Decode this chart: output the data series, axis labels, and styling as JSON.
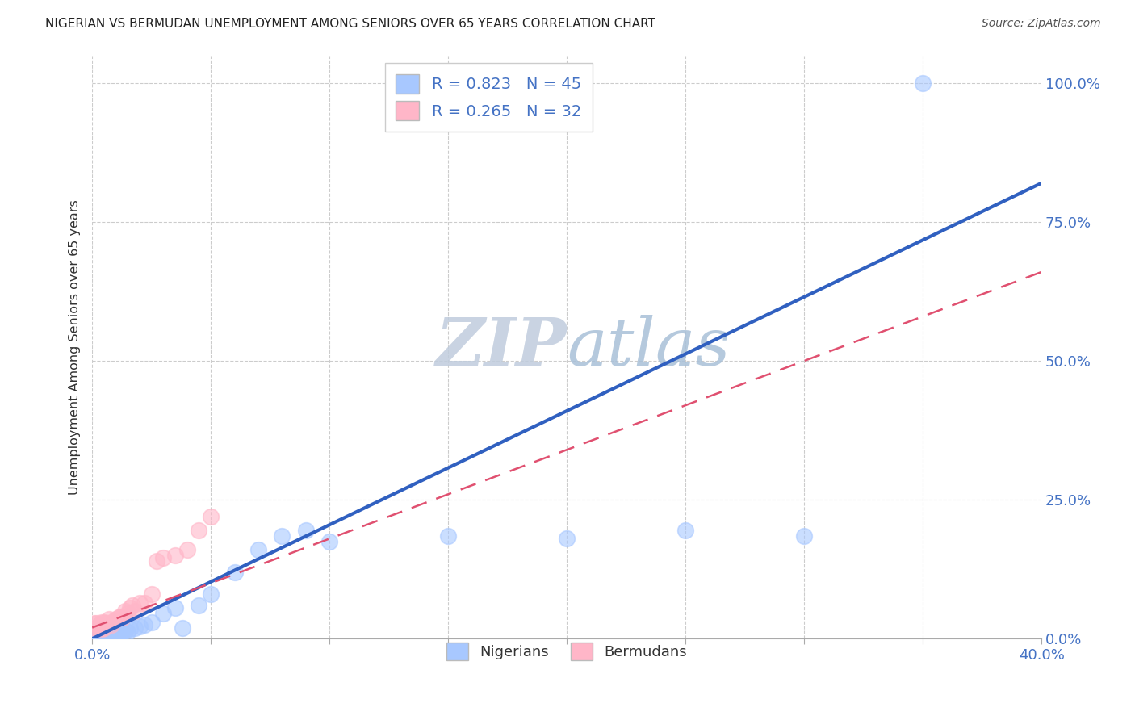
{
  "title": "NIGERIAN VS BERMUDAN UNEMPLOYMENT AMONG SENIORS OVER 65 YEARS CORRELATION CHART",
  "source": "Source: ZipAtlas.com",
  "ylabel": "Unemployment Among Seniors over 65 years",
  "xlim": [
    0.0,
    0.4
  ],
  "ylim": [
    0.0,
    1.05
  ],
  "x_ticks": [
    0.0,
    0.05,
    0.1,
    0.15,
    0.2,
    0.25,
    0.3,
    0.35,
    0.4
  ],
  "y_ticks": [
    0.0,
    0.25,
    0.5,
    0.75,
    1.0
  ],
  "y_tick_labels": [
    "0.0%",
    "25.0%",
    "50.0%",
    "75.0%",
    "100.0%"
  ],
  "nigerian_R": 0.823,
  "nigerian_N": 45,
  "bermudan_R": 0.265,
  "bermudan_N": 32,
  "nigerian_color": "#A8C8FF",
  "bermudan_color": "#FFB6C8",
  "nigerian_line_color": "#3060C0",
  "bermudan_line_color": "#E05070",
  "title_color": "#222222",
  "axis_label_color": "#333333",
  "tick_color": "#4472C4",
  "watermark_color": "#C8D8F0",
  "nigerian_scatter_x": [
    0.001,
    0.002,
    0.002,
    0.003,
    0.003,
    0.004,
    0.004,
    0.005,
    0.005,
    0.005,
    0.006,
    0.006,
    0.007,
    0.007,
    0.008,
    0.008,
    0.009,
    0.009,
    0.01,
    0.01,
    0.011,
    0.012,
    0.013,
    0.014,
    0.015,
    0.016,
    0.018,
    0.02,
    0.022,
    0.025,
    0.03,
    0.035,
    0.038,
    0.045,
    0.05,
    0.06,
    0.07,
    0.08,
    0.09,
    0.1,
    0.15,
    0.2,
    0.25,
    0.3,
    0.35
  ],
  "nigerian_scatter_y": [
    0.002,
    0.003,
    0.001,
    0.003,
    0.005,
    0.002,
    0.004,
    0.003,
    0.005,
    0.002,
    0.005,
    0.008,
    0.004,
    0.006,
    0.005,
    0.008,
    0.004,
    0.007,
    0.006,
    0.009,
    0.01,
    0.01,
    0.012,
    0.015,
    0.012,
    0.018,
    0.02,
    0.022,
    0.025,
    0.03,
    0.045,
    0.055,
    0.02,
    0.06,
    0.08,
    0.12,
    0.16,
    0.185,
    0.195,
    0.175,
    0.185,
    0.18,
    0.195,
    0.185,
    1.0
  ],
  "bermudan_scatter_x": [
    0.001,
    0.001,
    0.002,
    0.002,
    0.003,
    0.003,
    0.004,
    0.004,
    0.005,
    0.005,
    0.006,
    0.007,
    0.008,
    0.009,
    0.01,
    0.011,
    0.012,
    0.013,
    0.014,
    0.015,
    0.016,
    0.017,
    0.018,
    0.02,
    0.022,
    0.025,
    0.027,
    0.03,
    0.035,
    0.04,
    0.045,
    0.05
  ],
  "bermudan_scatter_y": [
    0.02,
    0.028,
    0.02,
    0.028,
    0.02,
    0.025,
    0.018,
    0.03,
    0.02,
    0.03,
    0.028,
    0.035,
    0.025,
    0.032,
    0.035,
    0.038,
    0.04,
    0.038,
    0.05,
    0.045,
    0.055,
    0.06,
    0.05,
    0.065,
    0.065,
    0.08,
    0.14,
    0.145,
    0.15,
    0.16,
    0.195,
    0.22
  ],
  "nigerian_trendline_x": [
    0.0,
    0.4
  ],
  "nigerian_trendline_y": [
    0.0,
    0.82
  ],
  "bermudan_trendline_x": [
    0.0,
    0.4
  ],
  "bermudan_trendline_y": [
    0.02,
    0.66
  ],
  "grid_color": "#CCCCCC",
  "background_color": "#FFFFFF"
}
